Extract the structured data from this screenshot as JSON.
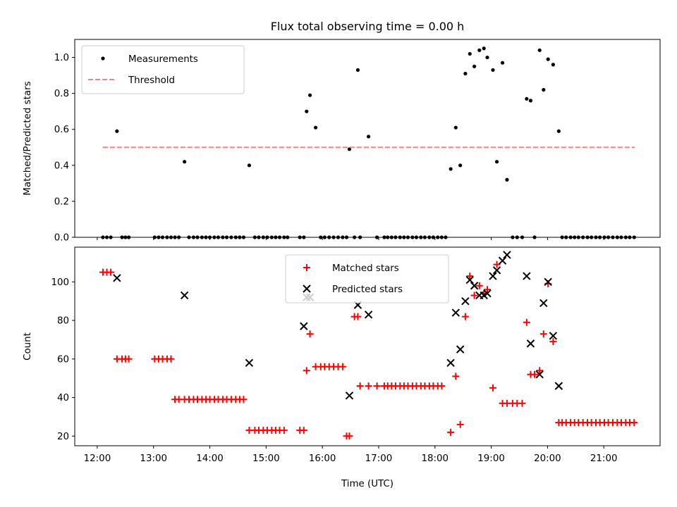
{
  "chart_data": [
    {
      "type": "scatter",
      "title": "Flux total observing time = 0.00 h",
      "xlabel": "",
      "ylabel": "Matched/Predicted stars",
      "xlim": [
        11.6,
        22.0
      ],
      "ylim": [
        0.0,
        1.1
      ],
      "yticks": [
        0.0,
        0.2,
        0.4,
        0.6,
        0.8,
        1.0
      ],
      "ytick_labels": [
        "0.0",
        "0.2",
        "0.4",
        "0.6",
        "0.8",
        "1.0"
      ],
      "legend": "upper-left",
      "grid": false,
      "series": [
        {
          "name": "Measurements",
          "style": "dot",
          "color": "#000000",
          "x": [
            12.1,
            12.17,
            12.24,
            12.35,
            12.44,
            12.5,
            12.56,
            13.02,
            13.09,
            13.16,
            13.24,
            13.31,
            13.38,
            13.45,
            13.55,
            13.63,
            13.71,
            13.78,
            13.86,
            13.93,
            14.0,
            14.08,
            14.15,
            14.23,
            14.3,
            14.38,
            14.46,
            14.53,
            14.6,
            14.7,
            14.8,
            14.87,
            14.95,
            15.02,
            15.1,
            15.17,
            15.24,
            15.32,
            15.38,
            15.6,
            15.67,
            15.72,
            15.78,
            15.88,
            15.97,
            16.04,
            16.12,
            16.2,
            16.28,
            16.36,
            16.43,
            16.48,
            16.57,
            16.63,
            16.67,
            16.82,
            16.97,
            17.1,
            17.16,
            17.23,
            17.3,
            17.38,
            17.45,
            17.52,
            17.6,
            17.67,
            17.75,
            17.82,
            17.9,
            17.97,
            18.05,
            18.12,
            18.19,
            18.28,
            18.37,
            18.45,
            18.54,
            18.62,
            18.7,
            18.79,
            18.87,
            18.93,
            19.03,
            19.1,
            19.2,
            19.28,
            19.38,
            19.46,
            19.55,
            19.63,
            19.7,
            19.77,
            19.86,
            19.93,
            20.01,
            20.1,
            20.2,
            20.26,
            20.33,
            20.41,
            20.48,
            20.55,
            20.63,
            20.71,
            20.78,
            20.86,
            20.93,
            21.01,
            21.08,
            21.16,
            21.24,
            21.31,
            21.39,
            21.46,
            21.54
          ],
          "y": [
            0.0,
            0.0,
            0.0,
            0.59,
            0.0,
            0.0,
            0.0,
            0.0,
            0.0,
            0.0,
            0.0,
            0.0,
            0.0,
            0.0,
            0.42,
            0.0,
            0.0,
            0.0,
            0.0,
            0.0,
            0.0,
            0.0,
            0.0,
            0.0,
            0.0,
            0.0,
            0.0,
            0.0,
            0.0,
            0.4,
            0.0,
            0.0,
            0.0,
            0.0,
            0.0,
            0.0,
            0.0,
            0.0,
            0.0,
            0.0,
            0.0,
            0.7,
            0.79,
            0.61,
            0.0,
            0.0,
            0.0,
            0.0,
            0.0,
            0.0,
            0.0,
            0.49,
            0.0,
            0.93,
            0.0,
            0.56,
            0.0,
            0.0,
            0.0,
            0.0,
            0.0,
            0.0,
            0.0,
            0.0,
            0.0,
            0.0,
            0.0,
            0.0,
            0.0,
            0.0,
            0.0,
            0.0,
            0.0,
            0.38,
            0.61,
            0.4,
            0.91,
            1.02,
            0.95,
            1.04,
            1.05,
            1.0,
            0.93,
            0.42,
            0.97,
            0.32,
            0.0,
            0.0,
            0.0,
            0.77,
            0.76,
            0.0,
            1.04,
            0.82,
            0.99,
            0.96,
            0.59,
            0.0,
            0.0,
            0.0,
            0.0,
            0.0,
            0.0,
            0.0,
            0.0,
            0.0,
            0.0,
            0.0,
            0.0,
            0.0,
            0.0,
            0.0,
            0.0,
            0.0,
            0.0
          ]
        },
        {
          "name": "Threshold",
          "style": "dashed-line",
          "color": "#ff7f7f",
          "x": [
            12.1,
            21.55
          ],
          "y": [
            0.5,
            0.5
          ]
        }
      ]
    },
    {
      "type": "scatter",
      "title": "",
      "xlabel": "Time (UTC)",
      "ylabel": "Count",
      "xlim": [
        11.6,
        22.0
      ],
      "ylim": [
        15,
        118
      ],
      "yticks": [
        20,
        40,
        60,
        80,
        100
      ],
      "ytick_labels": [
        "20",
        "40",
        "60",
        "80",
        "100"
      ],
      "xticks": [
        12,
        13,
        14,
        15,
        16,
        17,
        18,
        19,
        20,
        21
      ],
      "xtick_labels": [
        "12:00",
        "13:00",
        "14:00",
        "15:00",
        "16:00",
        "17:00",
        "18:00",
        "19:00",
        "20:00",
        "21:00"
      ],
      "legend": "upper-center",
      "grid": false,
      "series": [
        {
          "name": "Matched stars",
          "style": "plus",
          "color": "#ff0000",
          "x": [
            12.1,
            12.17,
            12.24,
            12.35,
            12.44,
            12.5,
            12.56,
            13.02,
            13.09,
            13.16,
            13.24,
            13.31,
            13.38,
            13.45,
            13.55,
            13.63,
            13.71,
            13.78,
            13.86,
            13.93,
            14.0,
            14.08,
            14.15,
            14.23,
            14.3,
            14.38,
            14.46,
            14.53,
            14.6,
            14.7,
            14.8,
            14.87,
            14.95,
            15.02,
            15.1,
            15.17,
            15.24,
            15.32,
            15.6,
            15.67,
            15.72,
            15.78,
            15.88,
            15.97,
            16.04,
            16.12,
            16.2,
            16.28,
            16.36,
            16.43,
            16.48,
            16.57,
            16.63,
            16.67,
            16.82,
            16.97,
            17.1,
            17.16,
            17.23,
            17.3,
            17.38,
            17.45,
            17.52,
            17.6,
            17.67,
            17.75,
            17.82,
            17.9,
            17.97,
            18.05,
            18.12,
            18.28,
            18.37,
            18.45,
            18.54,
            18.62,
            18.7,
            18.79,
            18.87,
            18.93,
            19.03,
            19.1,
            19.2,
            19.28,
            19.38,
            19.46,
            19.55,
            19.63,
            19.7,
            19.77,
            19.86,
            19.93,
            20.01,
            20.1,
            20.2,
            20.26,
            20.33,
            20.41,
            20.48,
            20.55,
            20.63,
            20.71,
            20.78,
            20.86,
            20.93,
            21.01,
            21.08,
            21.16,
            21.24,
            21.31,
            21.39,
            21.46,
            21.54
          ],
          "y": [
            105,
            105,
            105,
            60,
            60,
            60,
            60,
            60,
            60,
            60,
            60,
            60,
            39,
            39,
            39,
            39,
            39,
            39,
            39,
            39,
            39,
            39,
            39,
            39,
            39,
            39,
            39,
            39,
            39,
            23,
            23,
            23,
            23,
            23,
            23,
            23,
            23,
            23,
            23,
            23,
            54,
            73,
            56,
            56,
            56,
            56,
            56,
            56,
            56,
            20,
            20,
            82,
            82,
            46,
            46,
            46,
            46,
            46,
            46,
            46,
            46,
            46,
            46,
            46,
            46,
            46,
            46,
            46,
            46,
            46,
            46,
            22,
            51,
            26,
            82,
            103,
            93,
            98,
            94,
            96,
            45,
            109,
            37,
            37,
            37,
            37,
            37,
            79,
            52,
            52,
            54,
            73,
            99,
            69,
            27,
            27,
            27,
            27,
            27,
            27,
            27,
            27,
            27,
            27,
            27,
            27,
            27,
            27,
            27,
            27,
            27,
            27,
            27
          ]
        },
        {
          "name": "Predicted stars",
          "style": "x",
          "color": "#000000",
          "x": [
            12.35,
            13.55,
            14.7,
            15.67,
            15.72,
            15.78,
            16.48,
            16.63,
            16.82,
            18.28,
            18.37,
            18.45,
            18.54,
            18.62,
            18.7,
            18.79,
            18.87,
            18.93,
            19.03,
            19.1,
            19.2,
            19.28,
            19.63,
            19.7,
            19.86,
            19.93,
            20.01,
            20.1,
            20.2
          ],
          "y": [
            102,
            93,
            58,
            77,
            92,
            92,
            41,
            88,
            83,
            58,
            84,
            65,
            90,
            101,
            98,
            93,
            93,
            94,
            103,
            106,
            111,
            114,
            103,
            68,
            52,
            89,
            100,
            72,
            46
          ]
        }
      ]
    }
  ]
}
